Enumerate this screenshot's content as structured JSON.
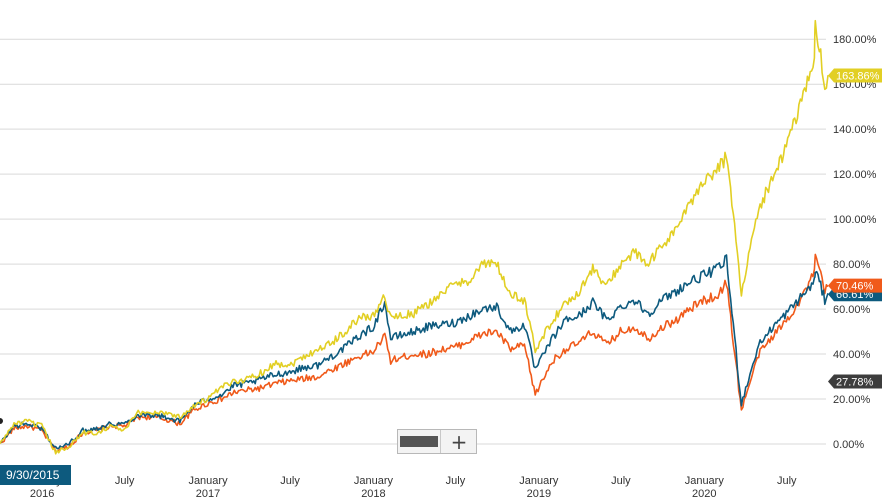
{
  "chart_data": {
    "type": "line",
    "title": "",
    "xlabel": "",
    "ylabel": "",
    "ylim": [
      -8,
      193
    ],
    "y_ticks": [
      "180.00%",
      "160.00%",
      "140.00%",
      "120.00%",
      "100.00%",
      "80.00%",
      "60.00%",
      "40.00%",
      "20.00%",
      "0.00%"
    ],
    "y_tick_values": [
      180,
      160,
      140,
      120,
      100,
      80,
      60,
      40,
      20,
      0
    ],
    "x_range": [
      "2015-09-30",
      "2020-09-30"
    ],
    "x_ticks": [
      {
        "date": "2016-01-01",
        "line1": "January",
        "line2": "2016"
      },
      {
        "date": "2016-07-01",
        "line1": "July",
        "line2": ""
      },
      {
        "date": "2017-01-01",
        "line1": "January",
        "line2": "2017"
      },
      {
        "date": "2017-07-01",
        "line1": "July",
        "line2": ""
      },
      {
        "date": "2018-01-01",
        "line1": "January",
        "line2": "2018"
      },
      {
        "date": "2018-07-01",
        "line1": "July",
        "line2": ""
      },
      {
        "date": "2019-01-01",
        "line1": "January",
        "line2": "2019"
      },
      {
        "date": "2019-07-01",
        "line1": "July",
        "line2": ""
      },
      {
        "date": "2020-01-01",
        "line1": "January",
        "line2": "2020"
      },
      {
        "date": "2020-07-01",
        "line1": "July",
        "line2": ""
      }
    ],
    "grid": true,
    "start_date_label": "9/30/2015",
    "series": [
      {
        "color": "#f05a1a",
        "end_label": "70.46%",
        "points": [
          [
            "2015-09-30",
            0
          ],
          [
            "2015-10-31",
            7
          ],
          [
            "2015-11-30",
            8
          ],
          [
            "2015-12-31",
            6
          ],
          [
            "2016-01-31",
            -3
          ],
          [
            "2016-02-29",
            -1
          ],
          [
            "2016-03-31",
            5
          ],
          [
            "2016-04-30",
            6
          ],
          [
            "2016-05-31",
            8
          ],
          [
            "2016-06-30",
            8
          ],
          [
            "2016-07-31",
            12
          ],
          [
            "2016-08-31",
            12
          ],
          [
            "2016-09-30",
            11
          ],
          [
            "2016-10-31",
            9
          ],
          [
            "2016-11-30",
            15
          ],
          [
            "2016-12-31",
            18
          ],
          [
            "2017-01-31",
            20
          ],
          [
            "2017-02-28",
            23
          ],
          [
            "2017-03-31",
            24
          ],
          [
            "2017-04-30",
            25
          ],
          [
            "2017-05-31",
            27
          ],
          [
            "2017-06-30",
            28
          ],
          [
            "2017-07-31",
            29
          ],
          [
            "2017-08-31",
            30
          ],
          [
            "2017-09-30",
            33
          ],
          [
            "2017-10-31",
            36
          ],
          [
            "2017-11-30",
            39
          ],
          [
            "2017-12-31",
            41
          ],
          [
            "2018-01-26",
            48
          ],
          [
            "2018-02-08",
            37
          ],
          [
            "2018-03-31",
            40
          ],
          [
            "2018-04-30",
            40
          ],
          [
            "2018-05-31",
            42
          ],
          [
            "2018-06-30",
            43
          ],
          [
            "2018-07-31",
            46
          ],
          [
            "2018-08-31",
            49
          ],
          [
            "2018-09-30",
            50
          ],
          [
            "2018-10-31",
            42
          ],
          [
            "2018-11-30",
            44
          ],
          [
            "2018-12-24",
            22
          ],
          [
            "2019-01-31",
            37
          ],
          [
            "2019-02-28",
            42
          ],
          [
            "2019-03-31",
            45
          ],
          [
            "2019-04-30",
            50
          ],
          [
            "2019-05-31",
            44
          ],
          [
            "2019-06-30",
            50
          ],
          [
            "2019-07-31",
            52
          ],
          [
            "2019-08-31",
            47
          ],
          [
            "2019-09-30",
            52
          ],
          [
            "2019-10-31",
            55
          ],
          [
            "2019-11-30",
            60
          ],
          [
            "2019-12-31",
            64
          ],
          [
            "2020-01-31",
            66
          ],
          [
            "2020-02-19",
            72
          ],
          [
            "2020-03-23",
            15
          ],
          [
            "2020-04-30",
            40
          ],
          [
            "2020-05-31",
            48
          ],
          [
            "2020-06-30",
            55
          ],
          [
            "2020-07-31",
            64
          ],
          [
            "2020-08-31",
            76
          ],
          [
            "2020-09-02",
            84
          ],
          [
            "2020-09-23",
            68
          ],
          [
            "2020-09-30",
            70
          ]
        ]
      },
      {
        "color": "#0d5a7e",
        "end_label": "66.61%",
        "points": [
          [
            "2015-09-30",
            0
          ],
          [
            "2015-10-31",
            8
          ],
          [
            "2015-11-30",
            9
          ],
          [
            "2015-12-31",
            7
          ],
          [
            "2016-01-31",
            -2
          ],
          [
            "2016-02-29",
            0
          ],
          [
            "2016-03-31",
            6
          ],
          [
            "2016-04-30",
            7
          ],
          [
            "2016-05-31",
            9
          ],
          [
            "2016-06-30",
            9
          ],
          [
            "2016-07-31",
            13
          ],
          [
            "2016-08-31",
            13
          ],
          [
            "2016-09-30",
            12
          ],
          [
            "2016-10-31",
            10
          ],
          [
            "2016-11-30",
            17
          ],
          [
            "2016-12-31",
            20
          ],
          [
            "2017-01-31",
            22
          ],
          [
            "2017-02-28",
            26
          ],
          [
            "2017-03-31",
            27
          ],
          [
            "2017-04-30",
            29
          ],
          [
            "2017-05-31",
            31
          ],
          [
            "2017-06-30",
            32
          ],
          [
            "2017-07-31",
            34
          ],
          [
            "2017-08-31",
            35
          ],
          [
            "2017-09-30",
            39
          ],
          [
            "2017-10-31",
            43
          ],
          [
            "2017-11-30",
            48
          ],
          [
            "2017-12-31",
            52
          ],
          [
            "2018-01-26",
            63
          ],
          [
            "2018-02-08",
            47
          ],
          [
            "2018-03-31",
            50
          ],
          [
            "2018-04-30",
            52
          ],
          [
            "2018-05-31",
            53
          ],
          [
            "2018-06-30",
            54
          ],
          [
            "2018-07-31",
            57
          ],
          [
            "2018-08-31",
            60
          ],
          [
            "2018-09-30",
            61
          ],
          [
            "2018-10-31",
            50
          ],
          [
            "2018-11-30",
            53
          ],
          [
            "2018-12-24",
            33
          ],
          [
            "2019-01-31",
            47
          ],
          [
            "2019-02-28",
            55
          ],
          [
            "2019-03-31",
            57
          ],
          [
            "2019-04-30",
            63
          ],
          [
            "2019-05-31",
            55
          ],
          [
            "2019-06-30",
            61
          ],
          [
            "2019-07-31",
            64
          ],
          [
            "2019-08-31",
            58
          ],
          [
            "2019-09-30",
            64
          ],
          [
            "2019-10-31",
            68
          ],
          [
            "2019-11-30",
            72
          ],
          [
            "2019-12-31",
            75
          ],
          [
            "2020-01-31",
            78
          ],
          [
            "2020-02-19",
            82
          ],
          [
            "2020-03-23",
            18
          ],
          [
            "2020-04-30",
            44
          ],
          [
            "2020-05-31",
            52
          ],
          [
            "2020-06-30",
            58
          ],
          [
            "2020-07-31",
            65
          ],
          [
            "2020-08-31",
            72
          ],
          [
            "2020-09-02",
            78
          ],
          [
            "2020-09-23",
            64
          ],
          [
            "2020-09-30",
            67
          ]
        ]
      },
      {
        "color": "#e2cf24",
        "end_label": "163.86%",
        "points": [
          [
            "2015-09-30",
            0
          ],
          [
            "2015-10-31",
            9
          ],
          [
            "2015-11-30",
            10
          ],
          [
            "2015-12-31",
            8
          ],
          [
            "2016-01-31",
            -4
          ],
          [
            "2016-02-29",
            -1
          ],
          [
            "2016-03-31",
            5
          ],
          [
            "2016-04-30",
            5
          ],
          [
            "2016-05-31",
            8
          ],
          [
            "2016-06-30",
            6
          ],
          [
            "2016-07-31",
            14
          ],
          [
            "2016-08-31",
            14
          ],
          [
            "2016-09-30",
            14
          ],
          [
            "2016-10-31",
            12
          ],
          [
            "2016-11-30",
            17
          ],
          [
            "2016-12-31",
            20
          ],
          [
            "2017-01-31",
            25
          ],
          [
            "2017-02-28",
            28
          ],
          [
            "2017-03-31",
            29
          ],
          [
            "2017-04-30",
            32
          ],
          [
            "2017-05-31",
            36
          ],
          [
            "2017-06-30",
            35
          ],
          [
            "2017-07-31",
            39
          ],
          [
            "2017-08-31",
            42
          ],
          [
            "2017-09-30",
            45
          ],
          [
            "2017-10-31",
            50
          ],
          [
            "2017-11-30",
            56
          ],
          [
            "2017-12-31",
            57
          ],
          [
            "2018-01-26",
            66
          ],
          [
            "2018-02-08",
            56
          ],
          [
            "2018-03-31",
            58
          ],
          [
            "2018-04-30",
            62
          ],
          [
            "2018-05-31",
            67
          ],
          [
            "2018-06-30",
            71
          ],
          [
            "2018-07-31",
            73
          ],
          [
            "2018-08-31",
            80
          ],
          [
            "2018-09-30",
            80
          ],
          [
            "2018-10-31",
            66
          ],
          [
            "2018-11-30",
            64
          ],
          [
            "2018-12-24",
            42
          ],
          [
            "2019-01-31",
            55
          ],
          [
            "2019-02-28",
            62
          ],
          [
            "2019-03-31",
            68
          ],
          [
            "2019-04-30",
            78
          ],
          [
            "2019-05-31",
            70
          ],
          [
            "2019-06-30",
            80
          ],
          [
            "2019-07-31",
            85
          ],
          [
            "2019-08-31",
            80
          ],
          [
            "2019-09-30",
            88
          ],
          [
            "2019-10-31",
            96
          ],
          [
            "2019-11-30",
            106
          ],
          [
            "2019-12-31",
            118
          ],
          [
            "2020-01-31",
            122
          ],
          [
            "2020-02-19",
            128
          ],
          [
            "2020-03-23",
            68
          ],
          [
            "2020-04-30",
            105
          ],
          [
            "2020-05-31",
            118
          ],
          [
            "2020-06-30",
            132
          ],
          [
            "2020-07-31",
            150
          ],
          [
            "2020-08-31",
            172
          ],
          [
            "2020-09-02",
            190
          ],
          [
            "2020-09-23",
            158
          ],
          [
            "2020-09-30",
            164
          ]
        ]
      }
    ],
    "extra_badges": [
      {
        "label": "27.78%",
        "value": 27.78,
        "color": "#3d3d3d"
      }
    ]
  }
}
